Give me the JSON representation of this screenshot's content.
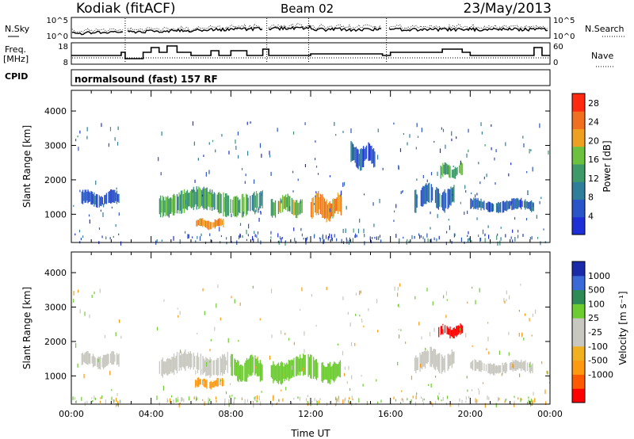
{
  "header": {
    "station": "Kodiak (fitACF)",
    "beam": "Beam 02",
    "date": "23/May/2013"
  },
  "top_panels": {
    "nsky_label": "N.Sky",
    "nsearch_label": "N.Search",
    "freq_label_1": "Freq.",
    "freq_label_2": "[MHz]",
    "nave_label": "Nave",
    "cpid_label": "CPID",
    "cpid_value": "normalsound (fast) 157 RF",
    "noise_ticks": [
      "10^5",
      "10^0"
    ],
    "freq_ticks": [
      "18",
      "8"
    ],
    "nave_ticks": [
      "60",
      "0"
    ]
  },
  "colors": {
    "power_scale": [
      "#1f2fd8",
      "#2a55c8",
      "#2f7f9a",
      "#3f9a6a",
      "#6cc23f",
      "#f0a020",
      "#f07020",
      "#ff2a10"
    ],
    "velocity_scale": [
      "#ff0000",
      "#ff5a00",
      "#ff9a10",
      "#f0b020",
      "#c8c8c0",
      "#c8c8c0",
      "#6ccc30",
      "#2e8b57",
      "#3a6ad8",
      "#1a2aa8"
    ]
  },
  "chart_data": [
    {
      "type": "heatmap",
      "title": "",
      "xlabel": "Time UT",
      "ylabel": "Slant Range [km]",
      "xlim": [
        "00:00",
        "24:00"
      ],
      "ylim": [
        180,
        4600
      ],
      "x_ticks": [
        "00:00",
        "04:00",
        "08:00",
        "12:00",
        "16:00",
        "20:00",
        "00:00"
      ],
      "y_ticks": [
        "1000",
        "2000",
        "3000",
        "4000"
      ],
      "colorbar": {
        "label": "Power [dB]",
        "ticks": [
          "4",
          "8",
          "12",
          "16",
          "20",
          "24",
          "28"
        ],
        "range": [
          0,
          30
        ]
      },
      "features_hours_km": [
        {
          "t_start": 0.5,
          "t_end": 2.4,
          "range_center": 1450,
          "range_width": 300,
          "power_dB": 6
        },
        {
          "t_start": 4.4,
          "t_end": 9.6,
          "range_center": 1350,
          "range_width": 500,
          "power_dB": 14
        },
        {
          "t_start": 6.2,
          "t_end": 7.6,
          "range_center": 720,
          "range_width": 200,
          "power_dB": 22
        },
        {
          "t_start": 10.0,
          "t_end": 11.6,
          "range_center": 1250,
          "range_width": 400,
          "power_dB": 16
        },
        {
          "t_start": 12.0,
          "t_end": 13.5,
          "range_center": 1200,
          "range_width": 500,
          "power_dB": 22
        },
        {
          "t_start": 14.0,
          "t_end": 15.2,
          "range_center": 2700,
          "range_width": 500,
          "power_dB": 6
        },
        {
          "t_start": 17.2,
          "t_end": 19.2,
          "range_center": 1500,
          "range_width": 500,
          "power_dB": 8
        },
        {
          "t_start": 18.5,
          "t_end": 19.6,
          "range_center": 2250,
          "range_width": 300,
          "power_dB": 14
        },
        {
          "t_start": 20.0,
          "t_end": 23.2,
          "range_center": 1250,
          "range_width": 250,
          "power_dB": 7
        }
      ]
    },
    {
      "type": "heatmap",
      "title": "",
      "xlabel": "Time UT",
      "ylabel": "Slant Range [km]",
      "xlim": [
        "00:00",
        "24:00"
      ],
      "ylim": [
        180,
        4600
      ],
      "x_ticks": [
        "00:00",
        "04:00",
        "08:00",
        "12:00",
        "16:00",
        "20:00",
        "00:00"
      ],
      "y_ticks": [
        "1000",
        "2000",
        "3000",
        "4000"
      ],
      "colorbar": {
        "label": "Velocity [m s⁻¹]",
        "ticks": [
          "1000",
          "500",
          "100",
          "25",
          "-25",
          "-100",
          "-500",
          "-1000"
        ]
      },
      "features_hours_km": [
        {
          "t_start": 0.5,
          "t_end": 2.4,
          "range_center": 1450,
          "range_width": 300,
          "velocity": 0
        },
        {
          "t_start": 4.4,
          "t_end": 8.0,
          "range_center": 1350,
          "range_width": 450,
          "velocity": 0
        },
        {
          "t_start": 8.0,
          "t_end": 9.6,
          "range_center": 1200,
          "range_width": 500,
          "velocity": 150
        },
        {
          "t_start": 10.0,
          "t_end": 13.5,
          "range_center": 1200,
          "range_width": 500,
          "velocity": 150
        },
        {
          "t_start": 6.2,
          "t_end": 7.6,
          "range_center": 780,
          "range_width": 200,
          "velocity": -100
        },
        {
          "t_start": 18.4,
          "t_end": 19.6,
          "range_center": 2300,
          "range_width": 250,
          "velocity": -1000
        },
        {
          "t_start": 17.2,
          "t_end": 19.2,
          "range_center": 1450,
          "range_width": 450,
          "velocity": 0
        },
        {
          "t_start": 20.0,
          "t_end": 23.2,
          "range_center": 1250,
          "range_width": 250,
          "velocity": 0
        }
      ]
    }
  ]
}
